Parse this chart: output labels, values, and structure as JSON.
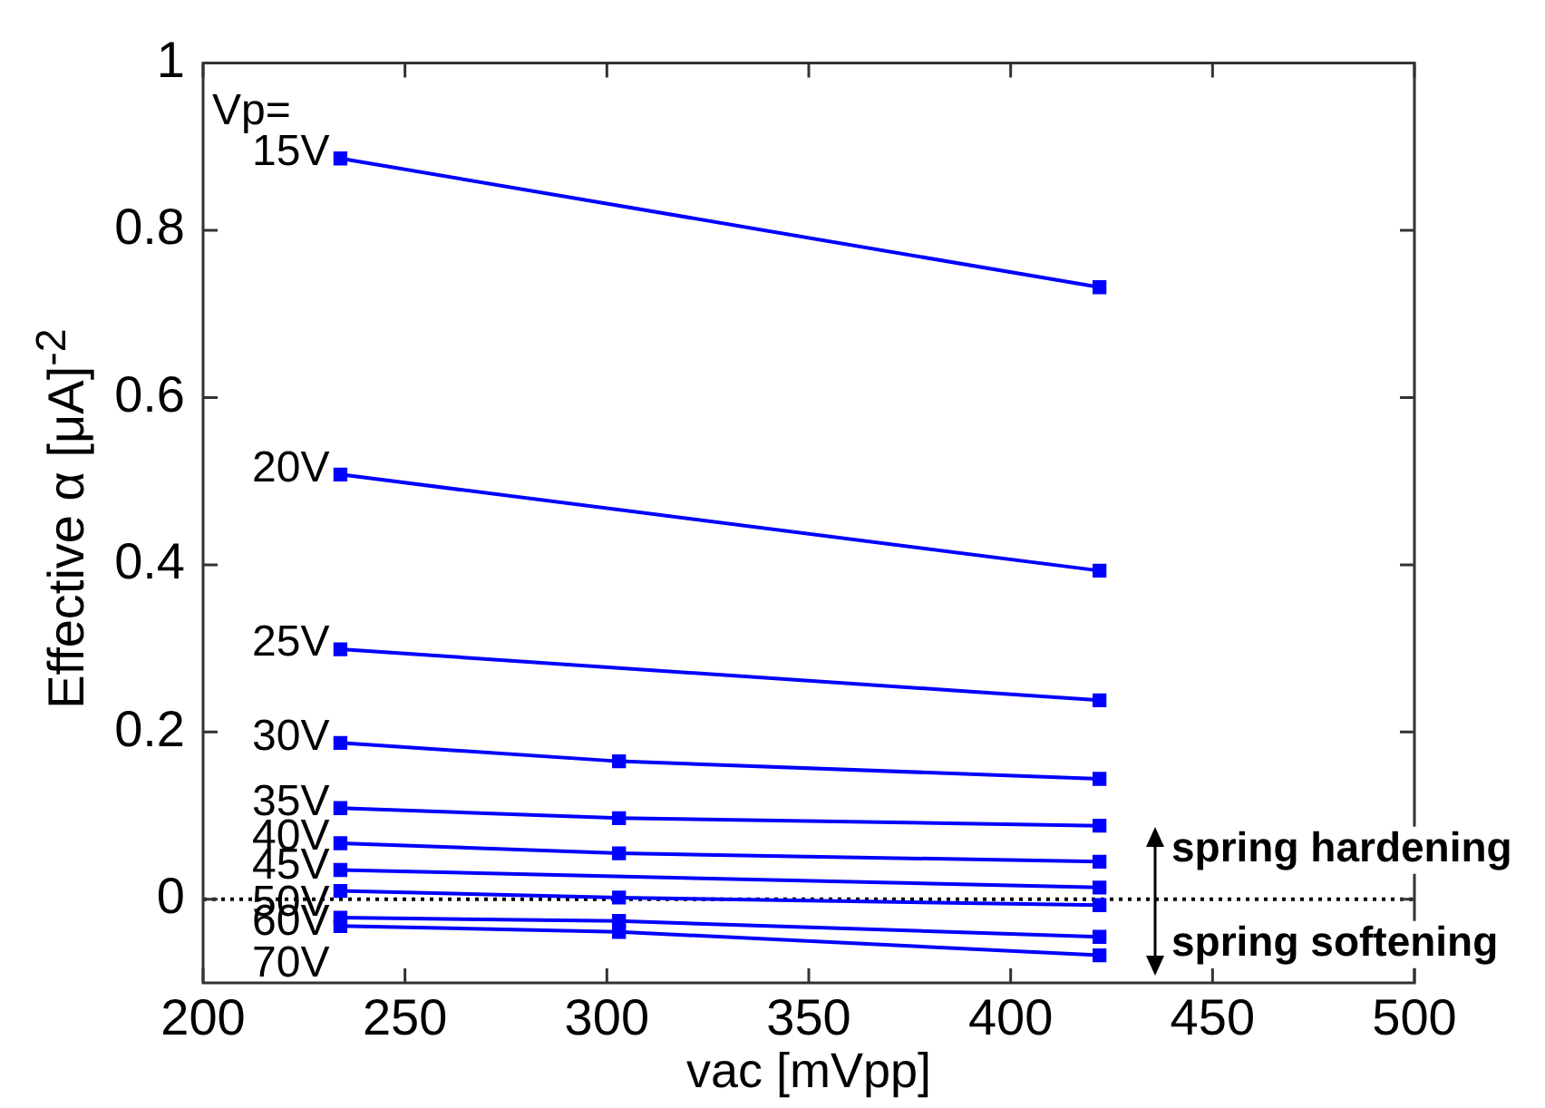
{
  "chart_data": {
    "type": "line",
    "xlabel": "vac [mVpp]",
    "ylabel": "Effective  α [μA]$^{-2}$",
    "xlim": [
      200,
      500
    ],
    "xticks": [
      200,
      250,
      300,
      350,
      400,
      450,
      500
    ],
    "ylim": [
      -0.1,
      1
    ],
    "yticks": [
      0,
      0.2,
      0.4,
      0.6,
      0.8,
      1
    ],
    "grid": false,
    "legend": false,
    "marker": "square",
    "line_style": "solid",
    "annotations": [
      "Vp=",
      "spring hardening",
      "spring softening"
    ],
    "ref_lines": [
      {
        "axis": "y",
        "value": 0,
        "color": "#000000",
        "line_style": "dotted"
      }
    ],
    "series": [
      {
        "name": "15V",
        "color": "#0000ff",
        "x": [
          234,
          422
        ],
        "values": [
          0.886,
          0.732
        ]
      },
      {
        "name": "20V",
        "color": "#0000ff",
        "x": [
          234,
          422
        ],
        "values": [
          0.508,
          0.393
        ]
      },
      {
        "name": "25V",
        "color": "#0000ff",
        "x": [
          234,
          422
        ],
        "values": [
          0.299,
          0.238
        ]
      },
      {
        "name": "30V",
        "color": "#0000ff",
        "x": [
          234,
          303,
          422
        ],
        "values": [
          0.187,
          0.165,
          0.144
        ]
      },
      {
        "name": "35V",
        "color": "#0000ff",
        "x": [
          234,
          303,
          422
        ],
        "values": [
          0.109,
          0.097,
          0.088
        ]
      },
      {
        "name": "40V",
        "color": "#0000ff",
        "x": [
          234,
          303,
          422
        ],
        "values": [
          0.067,
          0.055,
          0.045
        ]
      },
      {
        "name": "45V",
        "color": "#0000ff",
        "x": [
          234,
          422
        ],
        "values": [
          0.035,
          0.014
        ]
      },
      {
        "name": "50V",
        "color": "#0000ff",
        "x": [
          234,
          303,
          422
        ],
        "values": [
          0.01,
          0.002,
          -0.007
        ]
      },
      {
        "name": "60V",
        "color": "#0000ff",
        "x": [
          234,
          303,
          422
        ],
        "values": [
          -0.022,
          -0.026,
          -0.045
        ]
      },
      {
        "name": "70V",
        "color": "#0000ff",
        "x": [
          234,
          303,
          422
        ],
        "values": [
          -0.032,
          -0.039,
          -0.067
        ]
      }
    ]
  }
}
